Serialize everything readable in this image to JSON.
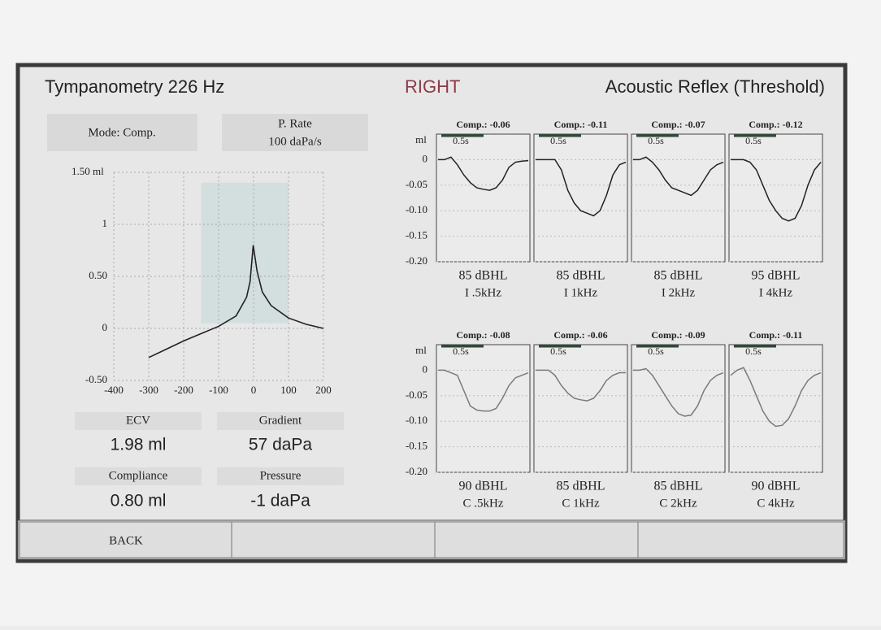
{
  "header": {
    "title": "Tympanometry 226 Hz",
    "ear": "RIGHT",
    "mode_title": "Acoustic Reflex (Threshold)"
  },
  "settings": {
    "mode": "Mode: Comp.",
    "rate_label": "P. Rate",
    "rate_value": "100 daPa/s"
  },
  "tympanogram": {
    "type": "line",
    "x": [
      -300,
      -250,
      -200,
      -150,
      -100,
      -50,
      -20,
      -10,
      -1,
      10,
      25,
      50,
      100,
      150,
      200
    ],
    "values": [
      -0.28,
      -0.2,
      -0.12,
      -0.05,
      0.02,
      0.12,
      0.3,
      0.45,
      0.8,
      0.55,
      0.35,
      0.22,
      0.1,
      0.04,
      0
    ],
    "color": "#222222",
    "xlim": [
      -400,
      200
    ],
    "ylim": [
      -0.5,
      1.5
    ],
    "xticks": [
      -400,
      -300,
      -200,
      -100,
      0,
      100,
      200
    ],
    "yticks": [
      {
        "value": 1.5,
        "label": "1.50 ml"
      },
      1,
      {
        "value": 0.5,
        "label": "0.50"
      },
      0,
      {
        "value": -0.5,
        "label": "-0.50"
      }
    ],
    "grid": true,
    "normal_region": {
      "x": [
        -150,
        100
      ],
      "y": [
        0.05,
        1.4
      ]
    },
    "region_color": "#d3dede"
  },
  "results": [
    {
      "label": "ECV",
      "value": "1.98 ml"
    },
    {
      "label": "Gradient",
      "value": "57 daPa"
    },
    {
      "label": "Compliance",
      "value": "0.80 ml"
    },
    {
      "label": "Pressure",
      "value": "-1 daPa"
    }
  ],
  "reflex": {
    "unit": "ml",
    "ylim": [
      -0.2,
      0.05
    ],
    "yticks": [
      0,
      -0.05,
      {
        "value": -0.1,
        "label": "-0.10"
      },
      -0.15,
      {
        "value": -0.2,
        "label": "-0.20"
      }
    ],
    "grid": true,
    "rows": [
      {
        "color": "#222222",
        "panels": [
          {
            "comp": "Comp.: -0.06",
            "duration": "0.5s",
            "level": "85 dBHL",
            "stimulus": "I .5kHz",
            "values": [
              0,
              0,
              0.005,
              -0.01,
              -0.03,
              -0.045,
              -0.055,
              -0.058,
              -0.06,
              -0.055,
              -0.04,
              -0.015,
              -0.005,
              -0.003,
              -0.002
            ]
          },
          {
            "comp": "Comp.: -0.11",
            "duration": "0.5s",
            "level": "85 dBHL",
            "stimulus": "I 1kHz",
            "values": [
              0,
              0,
              0,
              0,
              -0.02,
              -0.06,
              -0.085,
              -0.1,
              -0.105,
              -0.11,
              -0.1,
              -0.07,
              -0.03,
              -0.01,
              -0.005
            ]
          },
          {
            "comp": "Comp.: -0.07",
            "duration": "0.5s",
            "level": "85 dBHL",
            "stimulus": "I 2kHz",
            "values": [
              0,
              0,
              0.005,
              -0.005,
              -0.02,
              -0.04,
              -0.055,
              -0.06,
              -0.065,
              -0.07,
              -0.06,
              -0.04,
              -0.02,
              -0.01,
              -0.005
            ]
          },
          {
            "comp": "Comp.: -0.12",
            "duration": "0.5s",
            "level": "95 dBHL",
            "stimulus": "I 4kHz",
            "values": [
              0,
              0,
              0,
              -0.005,
              -0.02,
              -0.05,
              -0.08,
              -0.1,
              -0.115,
              -0.12,
              -0.115,
              -0.09,
              -0.05,
              -0.02,
              -0.005
            ]
          }
        ]
      },
      {
        "color": "#7a7a7a",
        "panels": [
          {
            "comp": "Comp.: -0.08",
            "duration": "0.5s",
            "level": "90 dBHL",
            "stimulus": "C .5kHz",
            "values": [
              0,
              0,
              -0.005,
              -0.01,
              -0.04,
              -0.07,
              -0.078,
              -0.08,
              -0.08,
              -0.075,
              -0.055,
              -0.03,
              -0.015,
              -0.01,
              -0.005
            ]
          },
          {
            "comp": "Comp.: -0.06",
            "duration": "0.5s",
            "level": "85 dBHL",
            "stimulus": "C 1kHz",
            "values": [
              0,
              0,
              0,
              -0.01,
              -0.03,
              -0.045,
              -0.055,
              -0.058,
              -0.06,
              -0.055,
              -0.04,
              -0.02,
              -0.01,
              -0.005,
              -0.005
            ]
          },
          {
            "comp": "Comp.: -0.09",
            "duration": "0.5s",
            "level": "85 dBHL",
            "stimulus": "C 2kHz",
            "values": [
              0,
              0,
              0.003,
              -0.01,
              -0.03,
              -0.05,
              -0.07,
              -0.085,
              -0.09,
              -0.088,
              -0.07,
              -0.04,
              -0.02,
              -0.01,
              -0.005
            ]
          },
          {
            "comp": "Comp.: -0.11",
            "duration": "0.5s",
            "level": "90 dBHL",
            "stimulus": "C 4kHz",
            "values": [
              -0.01,
              0,
              0.005,
              -0.02,
              -0.05,
              -0.08,
              -0.1,
              -0.11,
              -0.108,
              -0.095,
              -0.07,
              -0.04,
              -0.02,
              -0.01,
              -0.005
            ]
          }
        ]
      }
    ]
  },
  "footer": {
    "buttons": [
      "BACK"
    ]
  }
}
